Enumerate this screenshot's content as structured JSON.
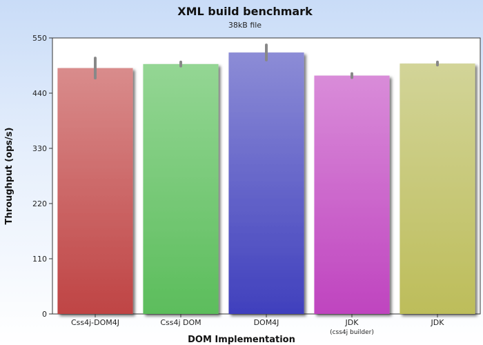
{
  "chart_data": {
    "type": "bar",
    "title": "XML build benchmark",
    "subtitle": "38kB file",
    "xlabel": "DOM Implementation",
    "ylabel": "Throughput (ops/s)",
    "ylim": [
      0,
      550
    ],
    "yticks": [
      0,
      110,
      220,
      330,
      440,
      550
    ],
    "categories": [
      {
        "label": "Css4j-DOM4J",
        "sublabel": ""
      },
      {
        "label": "Css4j DOM",
        "sublabel": ""
      },
      {
        "label": "DOM4J",
        "sublabel": ""
      },
      {
        "label": "JDK",
        "sublabel": "(css4j builder)"
      },
      {
        "label": "JDK",
        "sublabel": ""
      }
    ],
    "values": [
      490,
      498,
      521,
      475,
      499
    ],
    "error_low": [
      470,
      494,
      506,
      471,
      496
    ],
    "error_high": [
      510,
      502,
      536,
      479,
      502
    ],
    "colors": [
      {
        "light": "#d98c8c",
        "dark": "#bf4444"
      },
      {
        "light": "#94d694",
        "dark": "#5cbd5c"
      },
      {
        "light": "#8c8cd6",
        "dark": "#4040bd"
      },
      {
        "light": "#d98cd9",
        "dark": "#bf44bf"
      },
      {
        "light": "#d2d498",
        "dark": "#bdbd5a"
      }
    ],
    "grid": false,
    "legend": "none"
  }
}
